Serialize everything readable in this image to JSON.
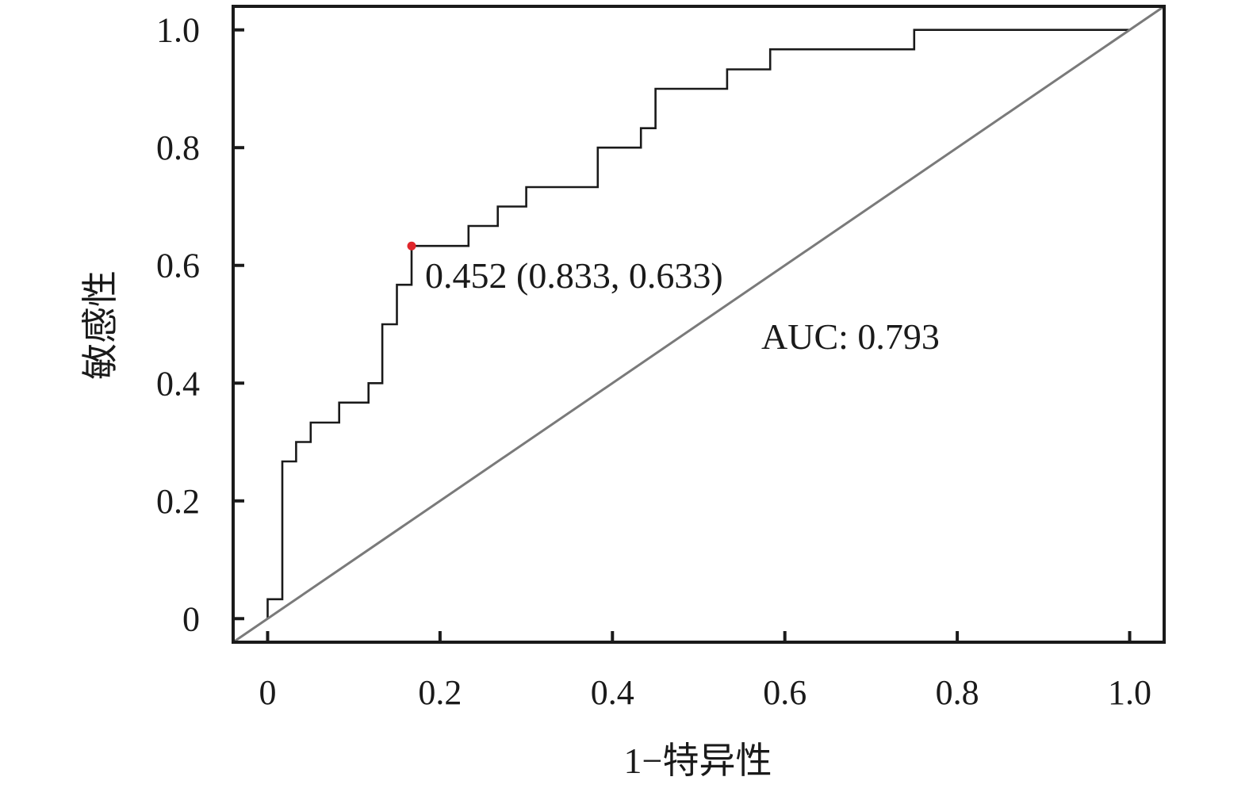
{
  "chart_data": {
    "type": "line",
    "xlabel": "1−特异性",
    "ylabel": "敏感性",
    "xlim": [
      -0.04,
      1.04
    ],
    "ylim": [
      -0.04,
      1.04
    ],
    "x_ticks": [
      0,
      0.2,
      0.4,
      0.6,
      0.8,
      1.0
    ],
    "x_tick_labels": [
      "0",
      "0.2",
      "0.4",
      "0.6",
      "0.8",
      "1.0"
    ],
    "y_ticks": [
      0,
      0.2,
      0.4,
      0.6,
      0.8,
      1.0
    ],
    "y_tick_labels": [
      "0",
      "0.2",
      "0.4",
      "0.6",
      "0.8",
      "1.0"
    ],
    "grid": false,
    "series": [
      {
        "style": "step",
        "color": "#1a1a1a",
        "x": [
          0,
          0,
          0.017,
          0.017,
          0.033,
          0.033,
          0.05,
          0.05,
          0.083,
          0.083,
          0.117,
          0.117,
          0.133,
          0.133,
          0.15,
          0.15,
          0.167,
          0.167,
          0.233,
          0.233,
          0.267,
          0.267,
          0.3,
          0.3,
          0.383,
          0.383,
          0.433,
          0.433,
          0.45,
          0.45,
          0.533,
          0.533,
          0.583,
          0.583,
          0.75,
          0.75,
          1.0
        ],
        "y": [
          0,
          0.033,
          0.033,
          0.267,
          0.267,
          0.3,
          0.3,
          0.333,
          0.333,
          0.367,
          0.367,
          0.4,
          0.4,
          0.5,
          0.5,
          0.567,
          0.567,
          0.633,
          0.633,
          0.667,
          0.667,
          0.7,
          0.7,
          0.733,
          0.733,
          0.8,
          0.8,
          0.833,
          0.833,
          0.9,
          0.9,
          0.933,
          0.933,
          0.967,
          0.967,
          1.0,
          1.0
        ]
      },
      {
        "style": "reference",
        "color": "#7a7a7a",
        "x": [
          -0.04,
          1.04
        ],
        "y": [
          -0.04,
          1.04
        ]
      }
    ],
    "highlight_point": {
      "x": 0.167,
      "y": 0.633,
      "color": "#e0262b",
      "label": "0.452 (0.833, 0.633)"
    },
    "annotations": [
      {
        "text": "AUC: 0.793"
      }
    ]
  }
}
